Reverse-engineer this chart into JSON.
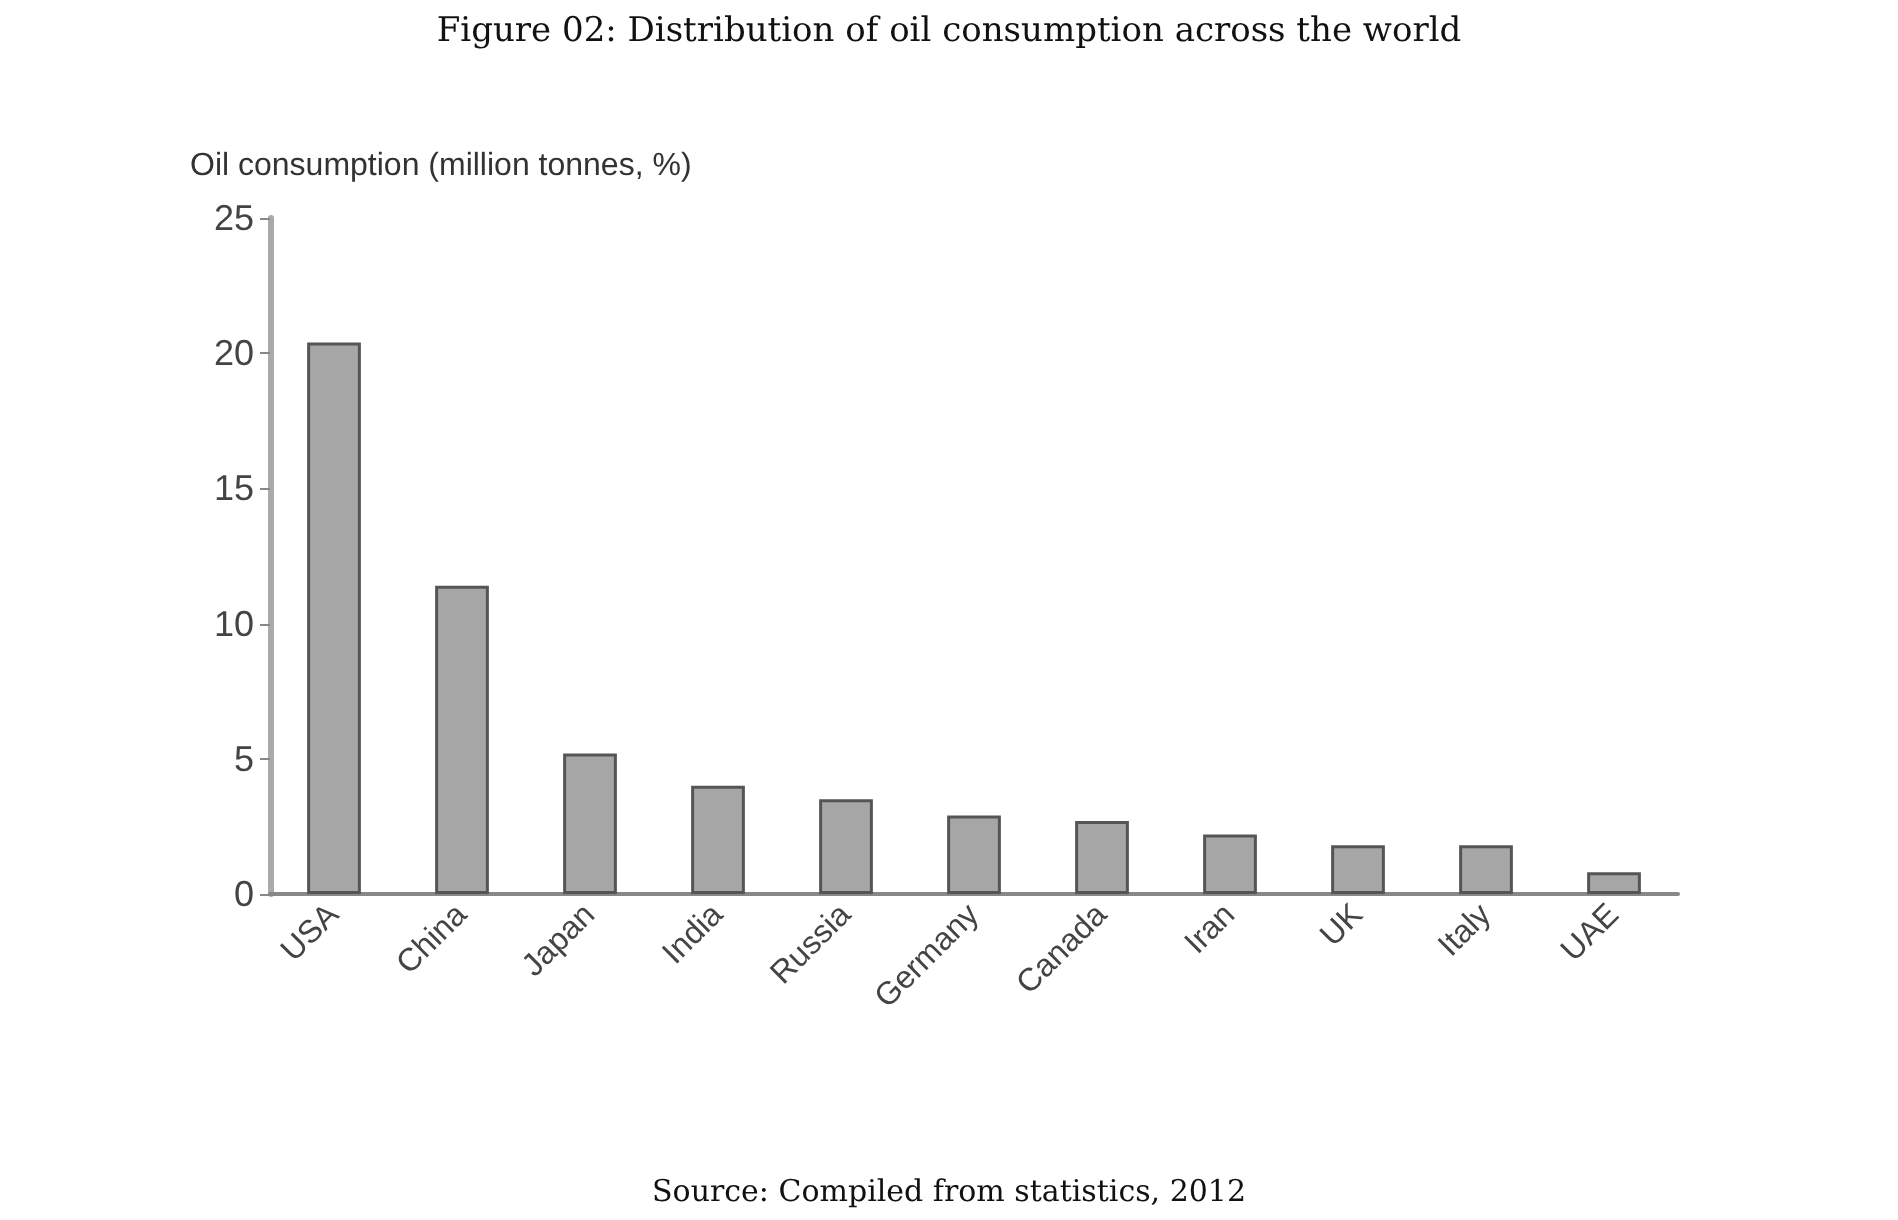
{
  "chart_data": {
    "type": "bar",
    "title": "Figure 02: Distribution of oil consumption across the world",
    "ylabel": "Oil consumption (million tonnes, %)",
    "categories": [
      "USA",
      "China",
      "Japan",
      "India",
      "Russia",
      "Germany",
      "Canada",
      "Iran",
      "UK",
      "Italy",
      "UAE"
    ],
    "values": [
      20.4,
      11.4,
      5.2,
      4.0,
      3.5,
      2.9,
      2.7,
      2.2,
      1.8,
      1.8,
      0.8
    ],
    "color": "#a6a6a6",
    "ylim": [
      0,
      25
    ],
    "yticks": [
      0,
      5,
      10,
      15,
      20,
      25
    ],
    "grid": false,
    "annotations": [
      "Source: Compiled from statistics, 2012"
    ]
  }
}
